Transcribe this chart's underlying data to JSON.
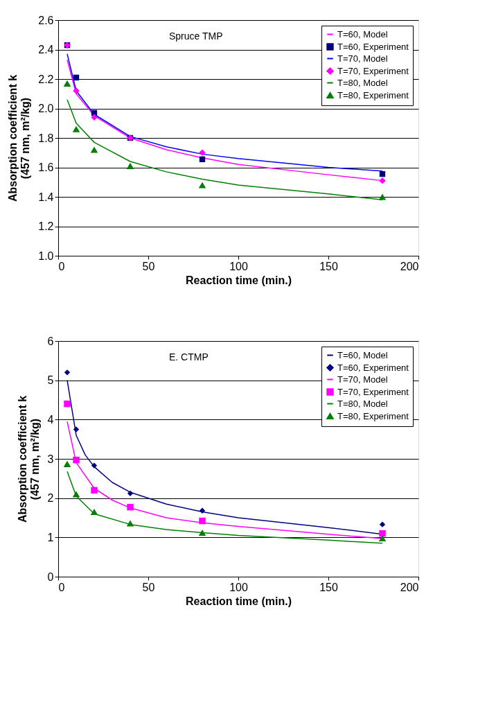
{
  "chart_data": [
    {
      "type": "line",
      "xlabel": "Reaction time (min.)",
      "ylabel": "Absorption coefficient k\n(457 nm, m²/kg)",
      "annotations": [
        "Spruce TMP"
      ],
      "xlim": [
        0,
        200
      ],
      "xticks": [
        0,
        50,
        100,
        150,
        200
      ],
      "ylim": [
        1.0,
        2.6
      ],
      "yticks": [
        {
          "value": 1.0,
          "label": "1.0"
        },
        1.2,
        1.4,
        1.6,
        1.8,
        {
          "value": 2.0,
          "label": "2.0"
        },
        2.2,
        2.4,
        2.6
      ],
      "grid": "y",
      "legend": "top right",
      "series": [
        {
          "name": "T=60, Model",
          "color": "#ff00ff",
          "x": [
            5,
            10,
            20,
            40,
            60,
            80,
            100,
            150,
            180
          ],
          "values": [
            2.33,
            2.1,
            1.95,
            1.8,
            1.72,
            1.665,
            1.62,
            1.55,
            1.51
          ]
        },
        {
          "name": "T=60, Experiment",
          "type": "scatter",
          "marker": "square",
          "color": "#000080",
          "x": [
            5,
            10,
            20,
            40,
            80,
            180
          ],
          "values": [
            2.43,
            2.21,
            1.97,
            1.8,
            1.655,
            1.555
          ]
        },
        {
          "name": "T=70, Model",
          "color": "#0000ff",
          "x": [
            5,
            10,
            20,
            40,
            60,
            80,
            100,
            150,
            180
          ],
          "values": [
            2.37,
            2.12,
            1.96,
            1.81,
            1.74,
            1.69,
            1.66,
            1.6,
            1.575
          ]
        },
        {
          "name": "T=70, Experiment",
          "type": "scatter",
          "marker": "diamond",
          "color": "#ff00ff",
          "x": [
            5,
            10,
            20,
            40,
            80,
            180
          ],
          "values": [
            2.43,
            2.12,
            1.94,
            1.8,
            1.7,
            1.51
          ]
        },
        {
          "name": "T=80, Model",
          "color": "#008000",
          "x": [
            5,
            10,
            20,
            40,
            60,
            80,
            100,
            150,
            180
          ],
          "values": [
            2.06,
            1.9,
            1.77,
            1.64,
            1.57,
            1.52,
            1.48,
            1.42,
            1.38
          ]
        },
        {
          "name": "T=80, Experiment",
          "type": "scatter",
          "marker": "triangle",
          "color": "#008000",
          "x": [
            5,
            10,
            20,
            40,
            80,
            180
          ],
          "values": [
            2.17,
            1.86,
            1.72,
            1.61,
            1.48,
            1.4
          ]
        }
      ]
    },
    {
      "type": "line",
      "xlabel": "Reaction time (min.)",
      "ylabel": "Absorption coefficient k\n(457 nm, m²/kg)",
      "annotations": [
        "E. CTMP"
      ],
      "xlim": [
        0,
        200
      ],
      "xticks": [
        0,
        50,
        100,
        150,
        200
      ],
      "ylim": [
        0,
        6
      ],
      "yticks": [
        0,
        1,
        2,
        3,
        4,
        5,
        6
      ],
      "grid": "y",
      "legend": "top right",
      "series": [
        {
          "name": "T=60, Model",
          "color": "#000080",
          "x": [
            5,
            10,
            15,
            20,
            30,
            40,
            60,
            80,
            100,
            150,
            180
          ],
          "values": [
            5.0,
            3.6,
            3.1,
            2.8,
            2.4,
            2.15,
            1.85,
            1.65,
            1.5,
            1.25,
            1.08
          ]
        },
        {
          "name": "T=60, Experiment",
          "type": "scatter",
          "marker": "diamond",
          "color": "#000080",
          "x": [
            5,
            10,
            20,
            40,
            80,
            180
          ],
          "values": [
            5.2,
            3.75,
            2.83,
            2.12,
            1.68,
            1.33
          ]
        },
        {
          "name": "T=70, Model",
          "color": "#ff00ff",
          "x": [
            5,
            10,
            20,
            30,
            40,
            60,
            80,
            100,
            150,
            180
          ],
          "values": [
            3.95,
            2.9,
            2.25,
            1.95,
            1.75,
            1.5,
            1.37,
            1.28,
            1.08,
            0.97
          ]
        },
        {
          "name": "T=70, Experiment",
          "type": "scatter",
          "marker": "square",
          "color": "#ff00ff",
          "x": [
            5,
            10,
            20,
            40,
            80,
            180
          ],
          "values": [
            4.4,
            2.97,
            2.2,
            1.77,
            1.42,
            1.1
          ]
        },
        {
          "name": "T=80, Model",
          "color": "#008000",
          "x": [
            5,
            10,
            20,
            40,
            60,
            80,
            100,
            150,
            180
          ],
          "values": [
            2.68,
            2.05,
            1.6,
            1.33,
            1.2,
            1.12,
            1.05,
            0.93,
            0.85
          ]
        },
        {
          "name": "T=80, Experiment",
          "type": "scatter",
          "marker": "triangle",
          "color": "#008000",
          "x": [
            5,
            10,
            20,
            40,
            80,
            180
          ],
          "values": [
            2.87,
            2.1,
            1.65,
            1.36,
            1.12,
            0.98
          ]
        }
      ]
    }
  ]
}
